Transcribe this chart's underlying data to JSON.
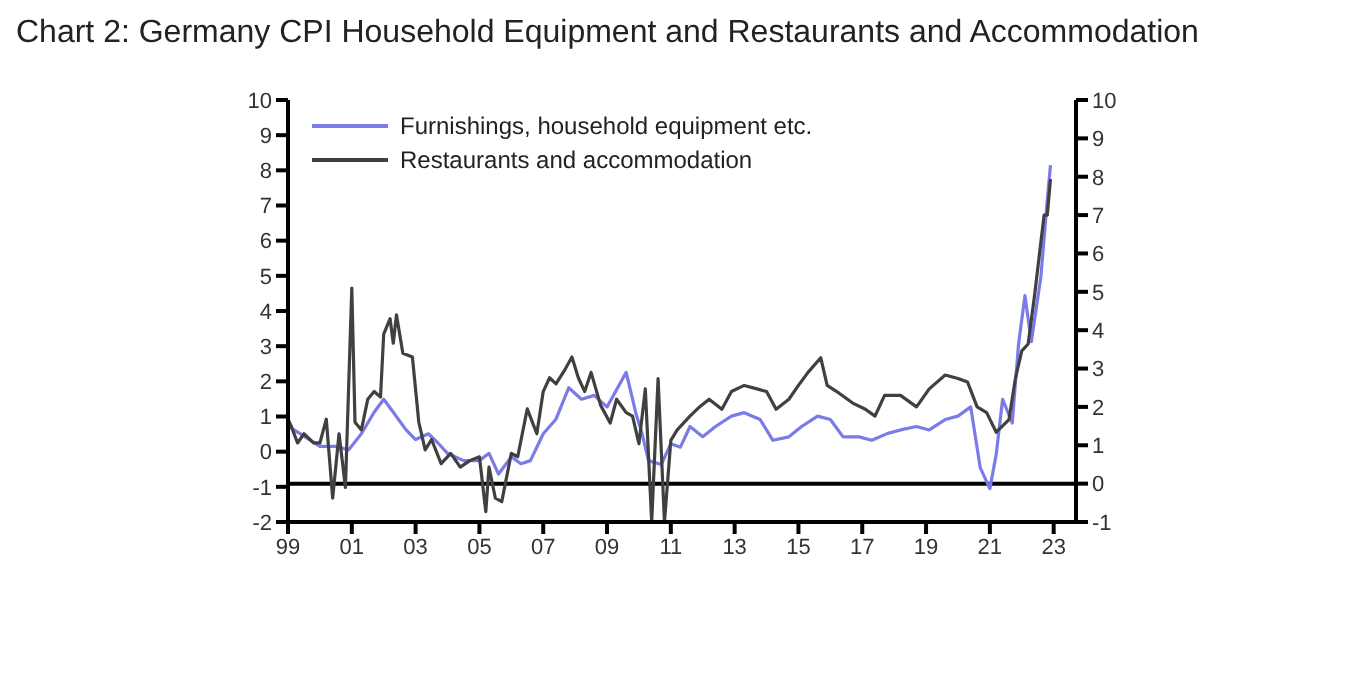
{
  "chart_data": {
    "type": "line",
    "title": "Chart 2: Germany CPI Household Equipment and Restaurants and Accommodation",
    "xlim": [
      1999,
      2023.7
    ],
    "xticks": [
      {
        "value": 1999,
        "label": "99"
      },
      {
        "value": 2001,
        "label": "01"
      },
      {
        "value": 2003,
        "label": "03"
      },
      {
        "value": 2005,
        "label": "05"
      },
      {
        "value": 2007,
        "label": "07"
      },
      {
        "value": 2009,
        "label": "09"
      },
      {
        "value": 2011,
        "label": "11"
      },
      {
        "value": 2013,
        "label": "13"
      },
      {
        "value": 2015,
        "label": "15"
      },
      {
        "value": 2017,
        "label": "17"
      },
      {
        "value": 2019,
        "label": "19"
      },
      {
        "value": 2021,
        "label": "21"
      },
      {
        "value": 2023,
        "label": "23"
      }
    ],
    "ylim": [
      -2,
      10
    ],
    "yticks": [
      -2,
      -1,
      0,
      1,
      2,
      3,
      4,
      5,
      6,
      7,
      8,
      9,
      10
    ],
    "y2lim": [
      -1,
      10
    ],
    "y2ticks": [
      -1,
      0,
      1,
      2,
      3,
      4,
      5,
      6,
      7,
      8,
      9,
      10
    ],
    "grid": false,
    "legend": "top left",
    "marker": "none",
    "line_style": "solid",
    "ref_lines": [
      {
        "axis": "y2",
        "value": 0,
        "color": "#000000"
      }
    ],
    "series": [
      {
        "name": "Furnishings, household equipment etc.",
        "color": "#7b7be8",
        "axis": "y2",
        "x": [
          1999.0,
          1999.5,
          2000.0,
          2000.5,
          2000.9,
          2001.3,
          2001.7,
          2002.0,
          2002.3,
          2002.7,
          2003.0,
          2003.4,
          2003.7,
          2004.0,
          2004.5,
          2005.0,
          2005.3,
          2005.6,
          2006.0,
          2006.3,
          2006.6,
          2007.0,
          2007.4,
          2007.8,
          2008.2,
          2008.6,
          2009.0,
          2009.6,
          2009.9,
          2010.1,
          2010.3,
          2010.7,
          2011.0,
          2011.3,
          2011.6,
          2012.0,
          2012.4,
          2012.9,
          2013.3,
          2013.8,
          2014.2,
          2014.7,
          2015.1,
          2015.6,
          2016.0,
          2016.4,
          2016.9,
          2017.3,
          2017.8,
          2018.2,
          2018.7,
          2019.1,
          2019.6,
          2020.0,
          2020.4,
          2020.7,
          2021.0,
          2021.2,
          2021.4,
          2021.7,
          2021.9,
          2022.1,
          2022.3,
          2022.6,
          2022.8,
          2022.9
        ],
        "values": [
          1.5,
          1.24,
          0.97,
          0.97,
          0.88,
          1.3,
          1.86,
          2.2,
          1.86,
          1.4,
          1.15,
          1.3,
          1.06,
          0.79,
          0.6,
          0.6,
          0.79,
          0.25,
          0.7,
          0.52,
          0.6,
          1.3,
          1.68,
          2.5,
          2.2,
          2.3,
          2.0,
          2.9,
          1.85,
          1.3,
          0.6,
          0.5,
          1.04,
          0.95,
          1.49,
          1.22,
          1.49,
          1.76,
          1.85,
          1.67,
          1.13,
          1.22,
          1.49,
          1.76,
          1.67,
          1.22,
          1.22,
          1.13,
          1.31,
          1.4,
          1.49,
          1.4,
          1.67,
          1.76,
          2.0,
          0.41,
          -0.13,
          0.77,
          2.2,
          1.58,
          3.64,
          4.9,
          3.7,
          5.4,
          7.4,
          8.3
        ]
      },
      {
        "name": "Restaurants and accommodation",
        "color": "#404040",
        "axis": "y2",
        "x": [
          1999.0,
          1999.1,
          1999.3,
          1999.5,
          1999.8,
          2000.0,
          2000.2,
          2000.4,
          2000.6,
          2000.8,
          2001.0,
          2001.1,
          2001.3,
          2001.5,
          2001.7,
          2001.9,
          2002.0,
          2002.2,
          2002.3,
          2002.4,
          2002.6,
          2002.9,
          2003.1,
          2003.3,
          2003.5,
          2003.8,
          2004.1,
          2004.4,
          2004.7,
          2005.0,
          2005.2,
          2005.3,
          2005.5,
          2005.7,
          2006.0,
          2006.2,
          2006.5,
          2006.8,
          2007.0,
          2007.2,
          2007.4,
          2007.7,
          2007.9,
          2008.1,
          2008.3,
          2008.5,
          2008.8,
          2009.1,
          2009.3,
          2009.6,
          2009.8,
          2010.0,
          2010.2,
          2010.4,
          2010.6,
          2010.8,
          2011.0,
          2011.2,
          2011.6,
          2011.9,
          2012.2,
          2012.6,
          2012.9,
          2013.3,
          2013.7,
          2014.0,
          2014.3,
          2014.7,
          2015.0,
          2015.3,
          2015.7,
          2015.9,
          2016.2,
          2016.7,
          2017.1,
          2017.4,
          2017.7,
          2018.2,
          2018.7,
          2019.1,
          2019.6,
          2020.0,
          2020.3,
          2020.6,
          2020.9,
          2021.2,
          2021.6,
          2021.8,
          2022.0,
          2022.2,
          2022.4,
          2022.7,
          2022.8,
          2022.9
        ],
        "values": [
          1.68,
          1.5,
          1.06,
          1.3,
          1.06,
          1.06,
          1.68,
          -0.38,
          1.3,
          -0.1,
          5.1,
          1.6,
          1.4,
          2.2,
          2.4,
          2.26,
          3.9,
          4.3,
          3.66,
          4.4,
          3.4,
          3.3,
          1.6,
          0.88,
          1.15,
          0.52,
          0.79,
          0.43,
          0.6,
          0.7,
          -0.73,
          0.43,
          -0.38,
          -0.47,
          0.79,
          0.7,
          1.95,
          1.3,
          2.4,
          2.76,
          2.6,
          3.0,
          3.3,
          2.76,
          2.4,
          2.9,
          2.04,
          1.58,
          2.2,
          1.85,
          1.76,
          1.04,
          2.47,
          -1,
          2.74,
          -1,
          1.13,
          1.4,
          1.76,
          2.0,
          2.2,
          1.94,
          2.4,
          2.56,
          2.47,
          2.4,
          1.94,
          2.2,
          2.56,
          2.9,
          3.28,
          2.56,
          2.4,
          2.1,
          1.94,
          1.76,
          2.3,
          2.3,
          2.0,
          2.47,
          2.83,
          2.74,
          2.65,
          2.0,
          1.85,
          1.34,
          1.67,
          2.74,
          3.46,
          3.64,
          4.9,
          7.0,
          7.0,
          7.94
        ]
      }
    ]
  }
}
